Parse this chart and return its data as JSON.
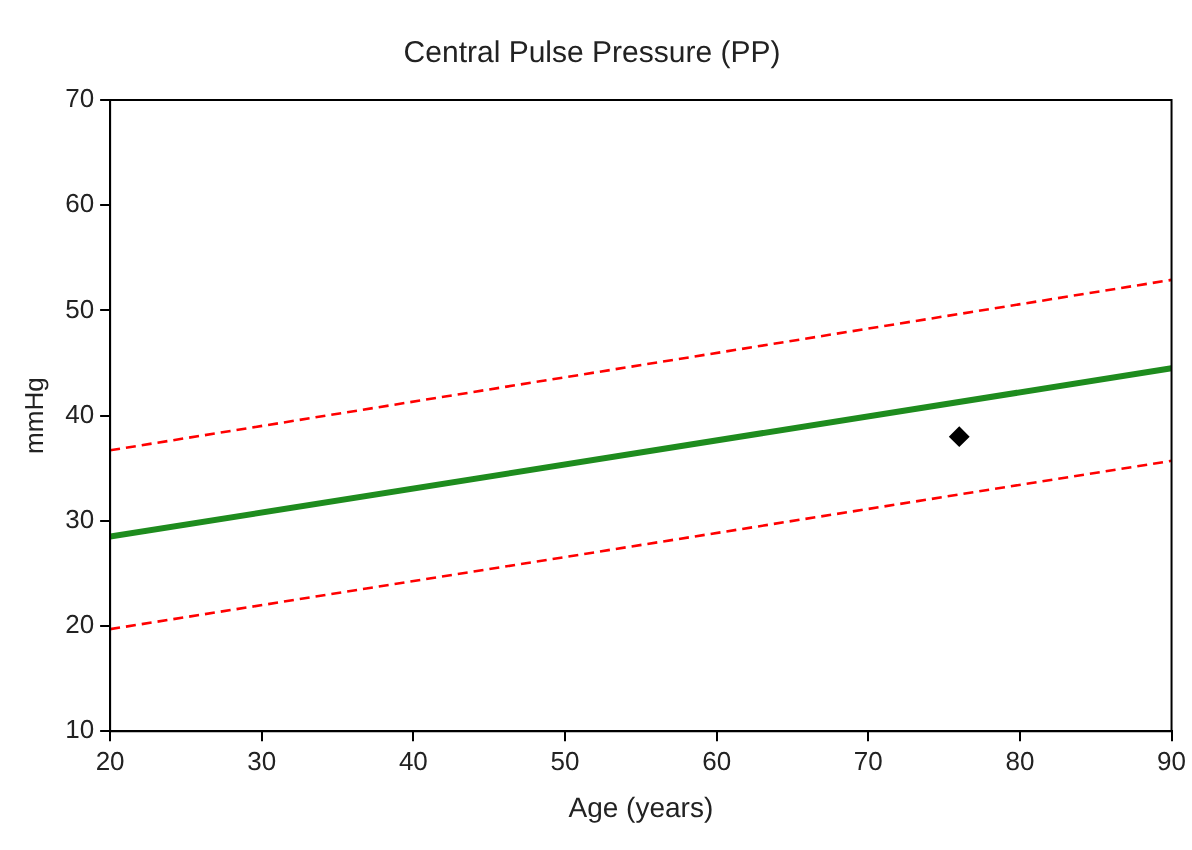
{
  "chart_data": {
    "type": "line",
    "title": "Central Pulse Pressure (PP)",
    "xlabel": "Age (years)",
    "ylabel": "mmHg",
    "xlim": [
      20,
      90
    ],
    "xticks": [
      20,
      30,
      40,
      50,
      60,
      70,
      80,
      90
    ],
    "ylim": [
      10,
      70
    ],
    "yticks": [
      10,
      20,
      30,
      40,
      50,
      60,
      70
    ],
    "grid": false,
    "legend": false,
    "series": [
      {
        "color": "#ff0000",
        "line_style": "dashed",
        "marker": "none",
        "x": [
          20,
          90
        ],
        "values": [
          36.7,
          52.9
        ]
      },
      {
        "color": "#1e8c1e",
        "line_style": "solid",
        "marker": "none",
        "x": [
          20,
          90
        ],
        "values": [
          28.5,
          44.5
        ]
      },
      {
        "color": "#ff0000",
        "line_style": "dashed",
        "marker": "none",
        "x": [
          20,
          90
        ],
        "values": [
          19.7,
          35.7
        ]
      },
      {
        "type": "scatter",
        "color": "#000000",
        "marker": "diamond",
        "x": [
          76
        ],
        "values": [
          38
        ]
      }
    ]
  }
}
